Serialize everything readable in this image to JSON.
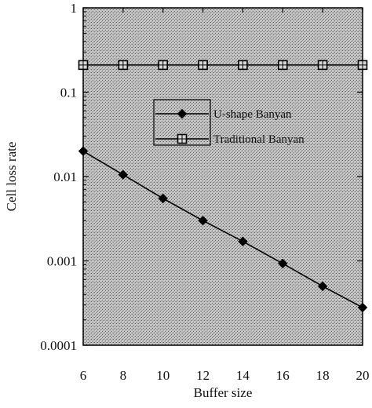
{
  "chart_data": {
    "type": "line",
    "xlabel": "Buffer size",
    "ylabel": "Cell loss rate",
    "x": [
      6,
      8,
      10,
      12,
      14,
      16,
      18,
      20
    ],
    "xlim": [
      6,
      20
    ],
    "ylim": [
      0.0001,
      1
    ],
    "yscale": "log",
    "xticks": [
      "6",
      "8",
      "10",
      "12",
      "14",
      "16",
      "18",
      "20"
    ],
    "yticks": [
      {
        "value": 1,
        "label": "1"
      },
      {
        "value": 0.1,
        "label": "0.1"
      },
      {
        "value": 0.01,
        "label": "0.01"
      },
      {
        "value": 0.001,
        "label": "0.001"
      },
      {
        "value": 0.0001,
        "label": "0.0001"
      }
    ],
    "grid": false,
    "legend_position": "center-right",
    "plot_background": "#b9b9b9",
    "series": [
      {
        "name": "U-shape Banyan",
        "marker": "diamond",
        "color": "#000000",
        "values": [
          0.02,
          0.0105,
          0.0055,
          0.003,
          0.0017,
          0.00093,
          0.0005,
          0.00028
        ]
      },
      {
        "name": "Traditional Banyan",
        "marker": "square",
        "color": "#000000",
        "values": [
          0.21,
          0.21,
          0.21,
          0.21,
          0.21,
          0.21,
          0.21,
          0.21
        ]
      }
    ]
  }
}
